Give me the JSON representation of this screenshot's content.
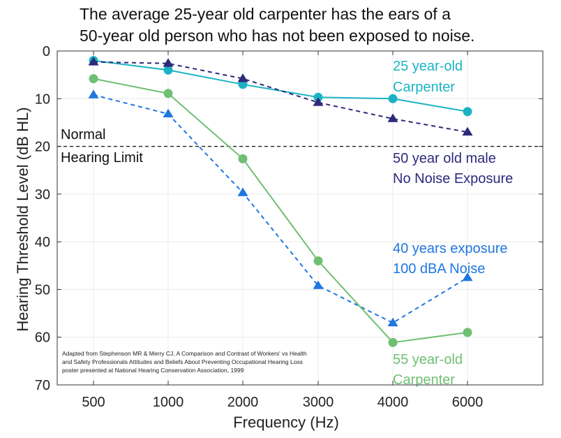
{
  "chart_data": {
    "type": "line",
    "title_lines": [
      "The average 25-year old carpenter has the ears of a",
      "50-year old person who has not been exposed to noise."
    ],
    "xlabel": "Frequency (Hz)",
    "ylabel": "Hearing Threshold Level (dB HL)",
    "categories": [
      "500",
      "1000",
      "2000",
      "3000",
      "4000",
      "6000"
    ],
    "ylim": [
      0,
      70
    ],
    "y_inverted": true,
    "yticks": [
      "0",
      "10",
      "20",
      "30",
      "40",
      "50",
      "60",
      "70"
    ],
    "grid": true,
    "reference_line": {
      "value": 20,
      "label_above": "Normal",
      "label_below": "Hearing Limit",
      "color": "#222222",
      "style": "dashed"
    },
    "series": [
      {
        "label_lines": [
          "25 year-old",
          "Carpenter"
        ],
        "values": [
          2,
          4,
          7,
          9.7,
          10,
          12.7
        ],
        "color": "#1bb3c4",
        "marker": "circle",
        "line_style": "solid"
      },
      {
        "label_lines": [
          "50 year old male",
          "No Noise Exposure"
        ],
        "values": [
          2.3,
          2.6,
          5.8,
          10.8,
          14.2,
          17
        ],
        "color": "#2d2a7c",
        "marker": "triangle",
        "line_style": "dashed"
      },
      {
        "label_lines": [
          "40 years exposure",
          "100 dBA Noise"
        ],
        "values": [
          9.2,
          13.2,
          29.7,
          49.2,
          57,
          47.5
        ],
        "color": "#1f77e0",
        "marker": "triangle",
        "line_style": "dashed"
      },
      {
        "label_lines": [
          "55 year-old",
          "Carpenter"
        ],
        "values": [
          5.8,
          8.9,
          22.6,
          44,
          61.1,
          59
        ],
        "color": "#6fbf73",
        "marker": "circle",
        "line_style": "solid"
      }
    ],
    "source_note_lines": [
      "Adapted from Stephenson MR & Merry CJ, A Comparison and Contrast of Workers' vs Health",
      "and Safety Professionals Attitudes and Beliefs About Preventing Occupational Hearing Loss",
      "poster presented at National Hearing Conservation Association, 1999"
    ]
  }
}
